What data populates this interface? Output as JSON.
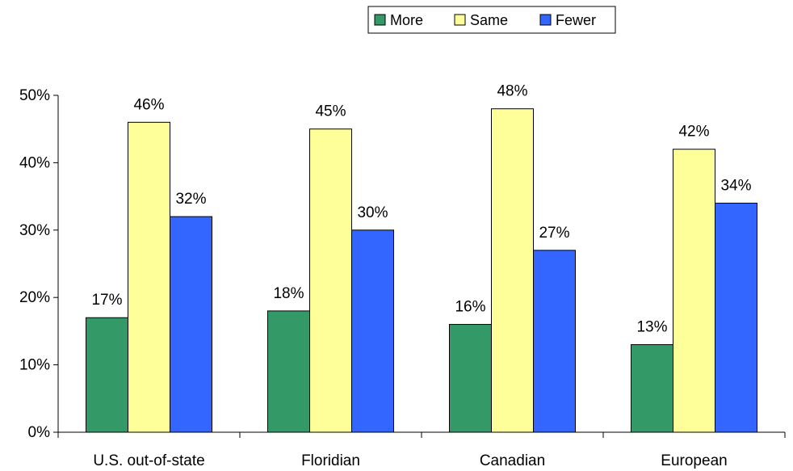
{
  "chart_data": {
    "type": "bar",
    "title": "",
    "xlabel": "",
    "ylabel": "",
    "categories": [
      "U.S. out-of-state",
      "Floridian",
      "Canadian",
      "European"
    ],
    "series": [
      {
        "name": "More",
        "color": "#339966",
        "values": [
          17,
          18,
          16,
          13
        ],
        "labels": [
          "17%",
          "18%",
          "16%",
          "13%"
        ]
      },
      {
        "name": "Same",
        "color": "#FFFF99",
        "values": [
          46,
          45,
          48,
          42
        ],
        "labels": [
          "46%",
          "45%",
          "48%",
          "42%"
        ]
      },
      {
        "name": "Fewer",
        "color": "#3366FF",
        "values": [
          32,
          30,
          27,
          34
        ],
        "labels": [
          "32%",
          "30%",
          "27%",
          "34%"
        ]
      }
    ],
    "ylim": [
      0,
      50
    ],
    "yticks": [
      0,
      10,
      20,
      30,
      40,
      50
    ],
    "ytick_labels": [
      "0%",
      "10%",
      "20%",
      "30%",
      "40%",
      "50%"
    ],
    "grid": false,
    "legend_position": "top-center"
  }
}
